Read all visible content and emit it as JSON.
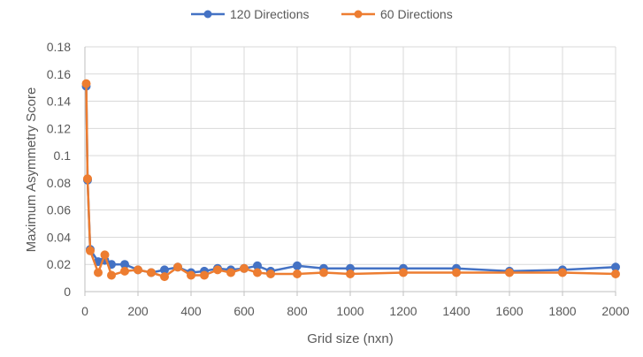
{
  "chart_data": {
    "type": "line",
    "title": "",
    "xlabel": "Grid size (nxn)",
    "ylabel": "Maximum Asymmetry Score",
    "xlim": [
      0,
      2000
    ],
    "ylim": [
      0,
      0.18
    ],
    "xticks": [
      "0",
      "200",
      "400",
      "600",
      "800",
      "1000",
      "1200",
      "1400",
      "1600",
      "1800",
      "2000"
    ],
    "yticks": [
      "0",
      "0.02",
      "0.04",
      "0.06",
      "0.08",
      "0.1",
      "0.12",
      "0.14",
      "0.16",
      "0.18"
    ],
    "grid": true,
    "legend_position": "top",
    "series": [
      {
        "name": "120 Directions",
        "color": "#4472C4",
        "x": [
          5,
          10,
          20,
          50,
          75,
          100,
          150,
          200,
          250,
          300,
          350,
          400,
          450,
          500,
          550,
          600,
          650,
          700,
          800,
          900,
          1000,
          1200,
          1400,
          1600,
          1800,
          2000
        ],
        "y": [
          0.151,
          0.082,
          0.031,
          0.022,
          0.023,
          0.02,
          0.02,
          0.016,
          0.014,
          0.016,
          0.018,
          0.014,
          0.015,
          0.017,
          0.016,
          0.017,
          0.019,
          0.015,
          0.019,
          0.017,
          0.017,
          0.017,
          0.017,
          0.015,
          0.016,
          0.018
        ]
      },
      {
        "name": "60 Directions",
        "color": "#ED7D31",
        "x": [
          5,
          10,
          20,
          50,
          75,
          100,
          150,
          200,
          250,
          300,
          350,
          400,
          450,
          500,
          550,
          600,
          650,
          700,
          800,
          900,
          1000,
          1200,
          1400,
          1600,
          1800,
          2000
        ],
        "y": [
          0.153,
          0.083,
          0.03,
          0.014,
          0.027,
          0.012,
          0.015,
          0.016,
          0.014,
          0.011,
          0.018,
          0.012,
          0.012,
          0.016,
          0.014,
          0.017,
          0.014,
          0.013,
          0.013,
          0.014,
          0.013,
          0.014,
          0.014,
          0.014,
          0.014,
          0.013
        ]
      }
    ]
  }
}
